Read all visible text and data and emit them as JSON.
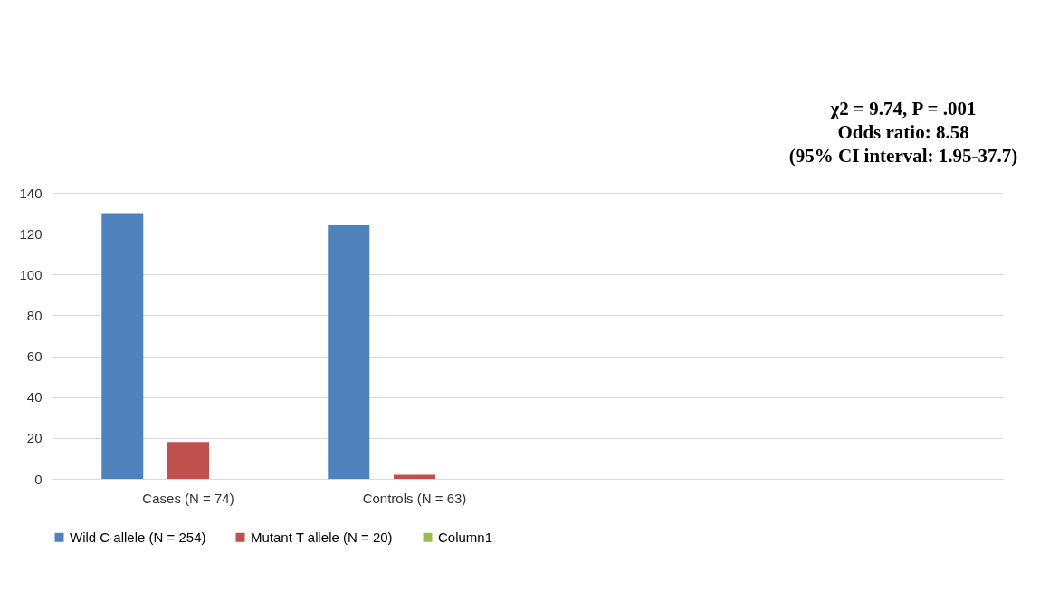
{
  "chart_data": {
    "type": "bar",
    "categories": [
      "Cases (N = 74)",
      "Controls (N = 63)",
      null,
      null
    ],
    "series": [
      {
        "name": "Wild C allele (N = 254)",
        "color": "#4f81bd",
        "values": [
          130,
          124,
          null,
          null
        ]
      },
      {
        "name": "Mutant T allele (N = 20)",
        "color": "#c0504d",
        "values": [
          18,
          2,
          null,
          null
        ]
      },
      {
        "name": "Column1",
        "color": "#9bbb59",
        "values": [
          null,
          null,
          null,
          null
        ]
      }
    ],
    "ylim": [
      0,
      140
    ],
    "yticks": [
      0,
      20,
      40,
      60,
      80,
      100,
      120,
      140
    ],
    "grid": "y",
    "legend": "bottom",
    "annotations": [
      "χ2 = 9.74, P = .001",
      "Odds ratio: 8.58",
      "(95% CI interval: 1.95-37.7)"
    ]
  }
}
